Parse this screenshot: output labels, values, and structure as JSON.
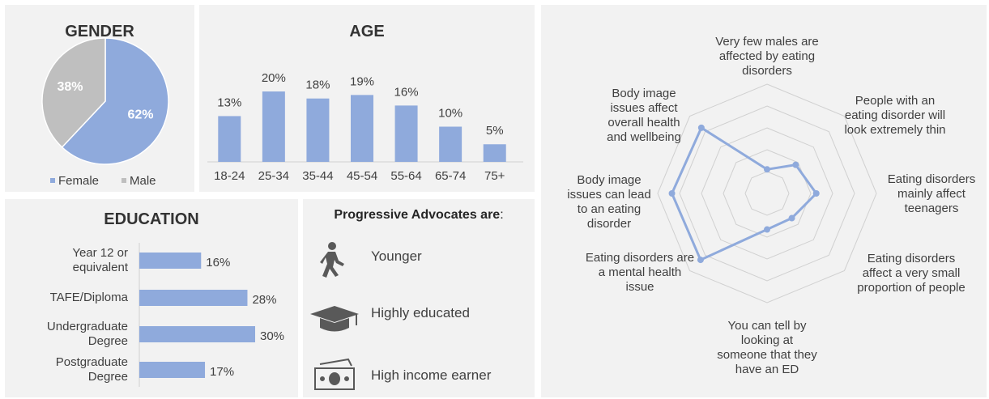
{
  "chart_data": [
    {
      "type": "pie",
      "title": "GENDER",
      "categories": [
        "Female",
        "Male"
      ],
      "values": [
        62,
        38
      ],
      "value_labels": [
        "62%",
        "38%"
      ],
      "colors": [
        "#8faadc",
        "#bfbfbf"
      ],
      "legend": "bottom"
    },
    {
      "type": "bar",
      "title": "AGE",
      "categories": [
        "18-24",
        "25-34",
        "35-44",
        "45-54",
        "55-64",
        "65-74",
        "75+"
      ],
      "values": [
        13,
        20,
        18,
        19,
        16,
        10,
        5
      ],
      "value_labels": [
        "13%",
        "20%",
        "18%",
        "19%",
        "16%",
        "10%",
        "5%"
      ],
      "color": "#8faadc",
      "ylim": [
        0,
        20
      ]
    },
    {
      "type": "hbar",
      "title": "EDUCATION",
      "categories": [
        "Year 12 or equivalent",
        "TAFE/Diploma",
        "Undergraduate Degree",
        "Postgraduate Degree"
      ],
      "values": [
        16,
        28,
        30,
        17
      ],
      "value_labels": [
        "16%",
        "28%",
        "30%",
        "17%"
      ],
      "color": "#8faadc",
      "xlim": [
        0,
        30
      ]
    },
    {
      "type": "radar",
      "categories": [
        "Very few males are affected by eating disorders",
        "People with an eating disorder will look extremely thin",
        "Eating disorders mainly affect teenagers",
        "Eating disorders affect a very small proportion of people",
        "You can tell by looking at someone that they have an ED",
        "Eating disorders are a mental health issue",
        "Body image issues can lead to an eating disorder",
        "Body image issues affect overall health and wellbeing"
      ],
      "values": [
        1.1,
        1.85,
        2.25,
        1.6,
        1.65,
        4.3,
        4.35,
        4.25
      ],
      "color": "#8faadc",
      "rlim": [
        0,
        5
      ],
      "rticks": [
        1,
        2,
        3,
        4,
        5
      ],
      "grid": true
    }
  ],
  "advocates": {
    "title": "Progressive Advocates are",
    "colon": ":",
    "items": [
      "Younger",
      "Highly educated",
      "High income earner"
    ]
  }
}
